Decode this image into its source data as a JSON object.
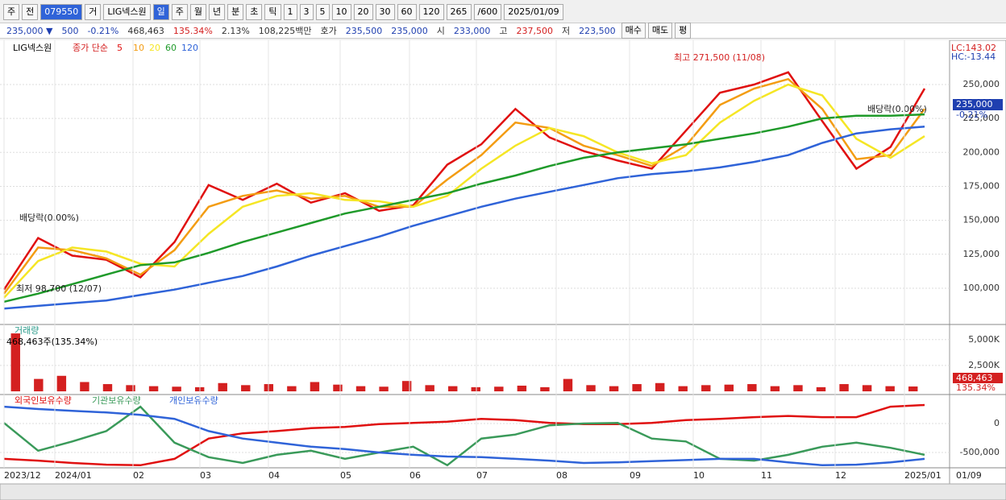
{
  "toolbar": {
    "items": [
      "주",
      "전",
      "079550",
      "거",
      "LIG넥스원",
      "일",
      "주",
      "월",
      "년",
      "분",
      "초",
      "틱",
      "1",
      "3",
      "5",
      "10",
      "20",
      "30",
      "60",
      "120",
      "265",
      "/600",
      "2025/01/09"
    ]
  },
  "info": {
    "items": [
      "235,000 ▼",
      "500",
      "-0.21%",
      "468,463",
      "135.34%",
      "2.13%",
      "108,225백만",
      "호가",
      "235,500",
      "235,000",
      "시",
      "233,000",
      "고",
      "237,500",
      "저",
      "223,500",
      "매수",
      "매도",
      "평"
    ]
  },
  "legend": {
    "name": "LIG넥스원",
    "indicator": "종가 단순",
    "periods": [
      "5",
      "10",
      "20",
      "60",
      "120"
    ]
  },
  "x_axis": {
    "labels": [
      "2023/12",
      "2024/01",
      "02",
      "03",
      "04",
      "05",
      "06",
      "07",
      "08",
      "09",
      "10",
      "11",
      "12",
      "2025/01"
    ],
    "current": "01/09"
  },
  "chart_data": [
    {
      "type": "line",
      "ylim": [
        73900,
        281400
      ],
      "yticks": [
        {
          "value": 100000,
          "label": "100,000"
        },
        {
          "value": 125000,
          "label": "125,000"
        },
        {
          "value": 150000,
          "label": "150,000"
        },
        {
          "value": 175000,
          "label": "175,000"
        },
        {
          "value": 200000,
          "label": "200,000"
        },
        {
          "value": 225000,
          "label": "225,000"
        },
        {
          "value": 250000,
          "label": "250,000"
        }
      ],
      "annotations": [
        "최고 271,500 (11/08)",
        "최저 98,700 (12/07)",
        "배당락(0.00%)",
        "배당락(0.00%)"
      ],
      "side_labels": [
        "LC:143.02",
        "HC:-13.44",
        "235,000",
        "-0.21%"
      ],
      "series": [
        {
          "name": "5",
          "color": "#e01010",
          "values": [
            99000,
            137000,
            124000,
            121000,
            108000,
            134000,
            176000,
            165000,
            177000,
            163000,
            170000,
            157000,
            161000,
            191000,
            206000,
            232000,
            211000,
            201000,
            194000,
            188000,
            216000,
            244000,
            250000,
            259000,
            223000,
            188000,
            204000,
            247000
          ]
        },
        {
          "name": "10",
          "color": "#f39c12",
          "values": [
            96000,
            130000,
            128000,
            122000,
            110000,
            128000,
            160000,
            168000,
            172000,
            166000,
            168000,
            160000,
            160000,
            180000,
            198000,
            222000,
            218000,
            205000,
            198000,
            190000,
            205000,
            235000,
            247000,
            254000,
            232000,
            195000,
            198000,
            232000
          ]
        },
        {
          "name": "20",
          "color": "#f5e625",
          "values": [
            93000,
            120000,
            130000,
            127000,
            118000,
            116000,
            140000,
            160000,
            168000,
            170000,
            165000,
            164000,
            160000,
            168000,
            188000,
            205000,
            218000,
            212000,
            200000,
            192000,
            198000,
            222000,
            238000,
            250000,
            242000,
            210000,
            196000,
            212000
          ]
        },
        {
          "name": "60",
          "color": "#1f9a2a",
          "values": [
            90000,
            96000,
            103000,
            110000,
            117000,
            119000,
            126000,
            134000,
            141000,
            148000,
            155000,
            160000,
            165000,
            170000,
            177000,
            183000,
            190000,
            196000,
            200000,
            203000,
            206000,
            210000,
            214000,
            219000,
            225000,
            227000,
            227000,
            228000
          ]
        },
        {
          "name": "120",
          "color": "#2f63d8",
          "values": [
            85000,
            87000,
            89000,
            91000,
            95000,
            99000,
            104000,
            109000,
            116000,
            124000,
            131000,
            138000,
            146000,
            153000,
            160000,
            166000,
            171000,
            176000,
            181000,
            184000,
            186000,
            189000,
            193000,
            198000,
            207000,
            214000,
            217000,
            219000
          ]
        }
      ]
    },
    {
      "type": "bar",
      "title": "거래량",
      "subtitle": "468,463주(135.34%)",
      "ylim": [
        -230,
        6385
      ],
      "yticks": [
        {
          "value": 5000,
          "label": "5,000K"
        },
        {
          "value": 2500,
          "label": "2,500K"
        }
      ],
      "side_labels": [
        "468,463",
        "135.34%"
      ],
      "color": "#d42020",
      "values": [
        5600,
        1200,
        1500,
        900,
        700,
        600,
        500,
        450,
        400,
        800,
        600,
        700,
        500,
        900,
        650,
        500,
        450,
        1000,
        600,
        500,
        400,
        450,
        550,
        400,
        1200,
        600,
        500,
        700,
        800,
        500,
        600,
        650,
        700,
        500,
        600,
        400,
        700,
        600,
        500,
        468
      ]
    },
    {
      "type": "line",
      "ylim": [
        -750000,
        486000
      ],
      "yticks": [
        0,
        {
          "value": -500000,
          "label": "-500,000"
        }
      ],
      "series": [
        {
          "name": "외국인보유수량",
          "color": "#e01010",
          "values": [
            -610000,
            -640000,
            -680000,
            -710000,
            -720000,
            -610000,
            -260000,
            -170000,
            -130000,
            -80000,
            -60000,
            -10000,
            10000,
            30000,
            80000,
            60000,
            10000,
            -10000,
            -10000,
            10000,
            60000,
            80000,
            110000,
            130000,
            110000,
            110000,
            290000,
            320000
          ]
        },
        {
          "name": "기관보유수량",
          "color": "#3a9a5a",
          "values": [
            10000,
            -470000,
            -310000,
            -130000,
            290000,
            -330000,
            -580000,
            -680000,
            -540000,
            -470000,
            -610000,
            -500000,
            -400000,
            -720000,
            -260000,
            -190000,
            -30000,
            0,
            10000,
            -260000,
            -310000,
            -610000,
            -640000,
            -540000,
            -400000,
            -330000,
            -420000,
            -540000
          ]
        },
        {
          "name": "개인보유수량",
          "color": "#2f63d8",
          "values": [
            290000,
            250000,
            220000,
            190000,
            150000,
            80000,
            -130000,
            -260000,
            -330000,
            -400000,
            -440000,
            -500000,
            -540000,
            -570000,
            -580000,
            -610000,
            -640000,
            -680000,
            -670000,
            -650000,
            -630000,
            -610000,
            -610000,
            -670000,
            -720000,
            -710000,
            -670000,
            -610000
          ]
        }
      ]
    }
  ]
}
